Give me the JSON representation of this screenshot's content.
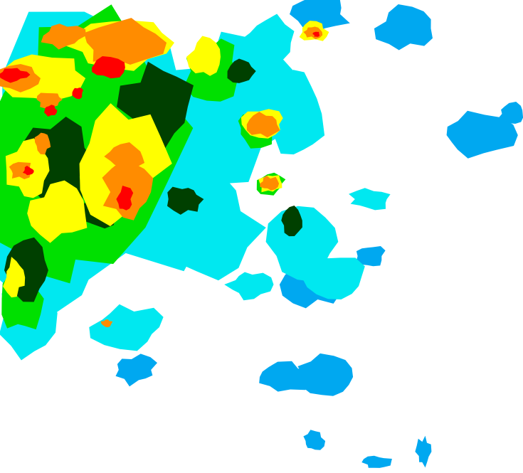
{
  "map": {
    "type": "weather-radar-reflectivity",
    "background": "#ffffff",
    "levels": [
      {
        "name": "light-blue",
        "color": "#00a8f0"
      },
      {
        "name": "cyan",
        "color": "#00e8f0"
      },
      {
        "name": "green",
        "color": "#00e000"
      },
      {
        "name": "dark-green",
        "color": "#004000"
      },
      {
        "name": "yellow",
        "color": "#ffff00"
      },
      {
        "name": "orange",
        "color": "#ff8c00"
      },
      {
        "name": "red",
        "color": "#ff0000"
      }
    ]
  }
}
